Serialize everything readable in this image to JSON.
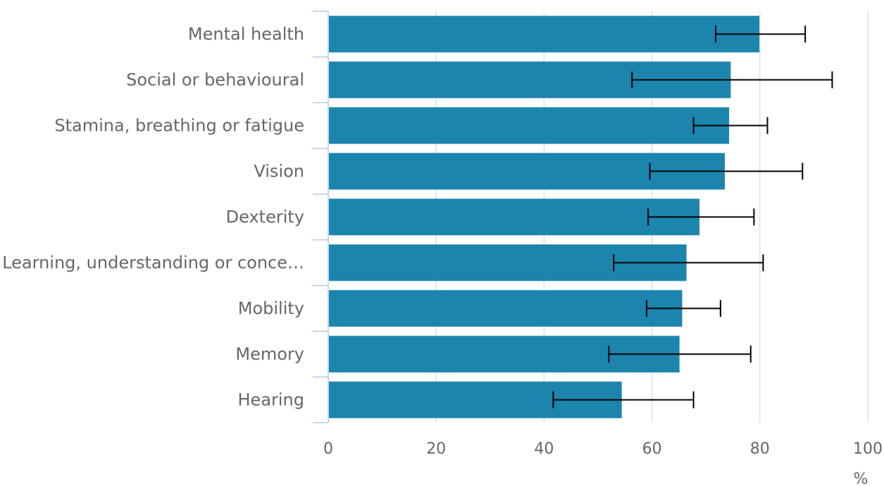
{
  "chart_data": {
    "type": "bar",
    "orientation": "horizontal",
    "title": "",
    "xlabel": "",
    "ylabel": "",
    "unit_label": "%",
    "categories": [
      "Mental health",
      "Social or behavioural",
      "Stamina, breathing or fatigue",
      "Vision",
      "Dexterity",
      "Learning, understanding or conce…",
      "Mobility",
      "Memory",
      "Hearing"
    ],
    "values": [
      79.9,
      74.6,
      74.3,
      73.5,
      68.8,
      66.4,
      65.6,
      65.1,
      54.4
    ],
    "error_low": [
      71.8,
      56.3,
      67.7,
      59.6,
      59.3,
      52.9,
      59.0,
      52.0,
      41.7
    ],
    "error_high": [
      88.4,
      93.4,
      81.4,
      87.9,
      78.9,
      80.6,
      72.7,
      78.3,
      67.7
    ],
    "xlim": [
      0,
      100
    ],
    "xticks": [
      "0",
      "20",
      "40",
      "60",
      "80",
      "100"
    ],
    "bar_color": "#1b85ad",
    "error_bar_color": "#000000",
    "grid": true,
    "legend": false
  }
}
